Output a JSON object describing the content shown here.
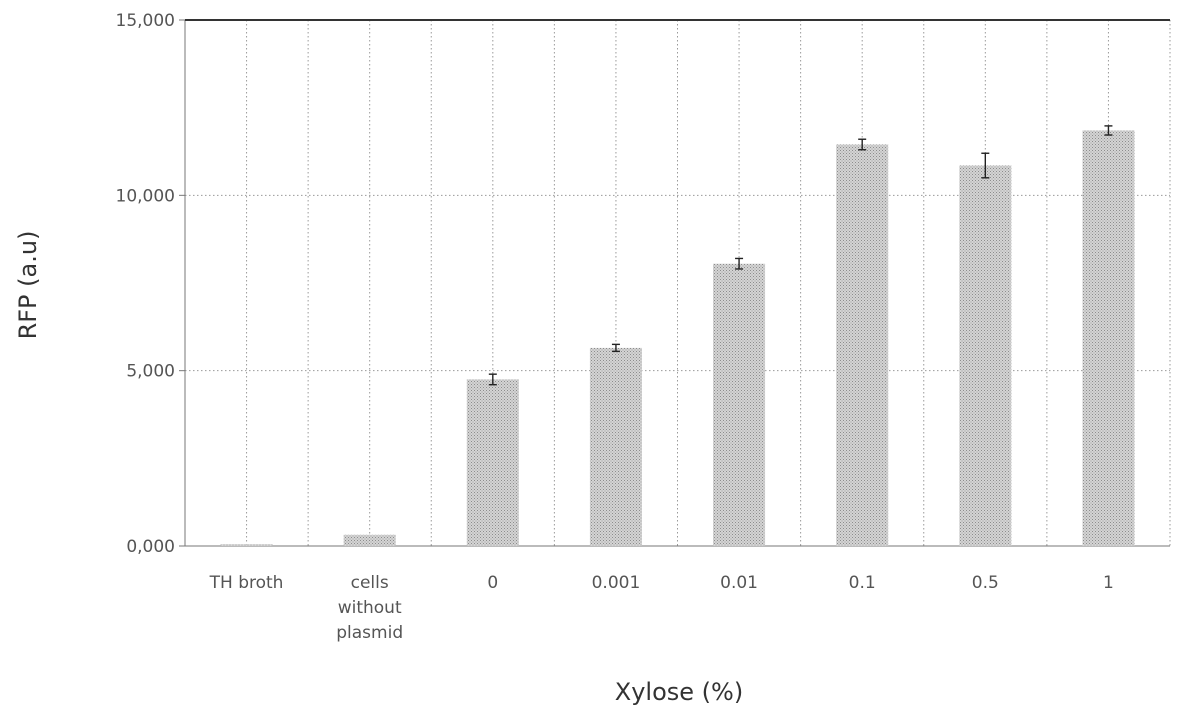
{
  "chart_data": {
    "type": "bar",
    "title": "",
    "xlabel": "Xylose (%)",
    "ylabel": "RFP (a.u)",
    "categories": [
      [
        "TH broth"
      ],
      [
        "cells",
        "without",
        "plasmid"
      ],
      [
        "0"
      ],
      [
        "0.001"
      ],
      [
        "0.01"
      ],
      [
        "0.1"
      ],
      [
        "0.5"
      ],
      [
        "1"
      ]
    ],
    "values": [
      50,
      320,
      4750,
      5650,
      8050,
      11450,
      10850,
      11850
    ],
    "errors": [
      0,
      0,
      150,
      100,
      150,
      150,
      350,
      130
    ],
    "ylim": [
      0,
      15000
    ],
    "yticks": [
      0,
      5000,
      10000,
      15000
    ],
    "ytick_labels": [
      "0,000",
      "5,000",
      "10,000",
      "15,000"
    ],
    "grid": true,
    "bar_color": "#bcbcbc",
    "error_color": "#222222",
    "grid_color": "#9a9a9a"
  }
}
